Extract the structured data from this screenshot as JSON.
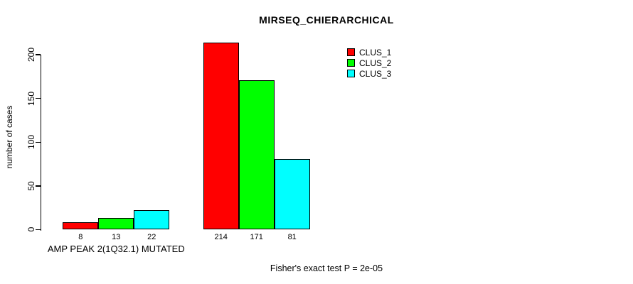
{
  "chart_data": {
    "type": "bar",
    "title": "MIRSEQ_CHIERARCHICAL",
    "xlabel": "",
    "ylabel": "number of cases",
    "ylim": [
      0,
      215
    ],
    "yticks": [
      0,
      50,
      100,
      150,
      200
    ],
    "grid": false,
    "legend_position": "top-right",
    "series": [
      {
        "name": "CLUS_1",
        "color": "#ff0000"
      },
      {
        "name": "CLUS_2",
        "color": "#00ff00"
      },
      {
        "name": "CLUS_3",
        "color": "#00ffff"
      }
    ],
    "groups": [
      {
        "label": "AMP PEAK 2(1Q32.1) MUTATED",
        "values": [
          8,
          13,
          22
        ]
      },
      {
        "label": "",
        "values": [
          214,
          171,
          81
        ]
      }
    ],
    "annotation": "Fisher's exact test P = 2e-05"
  }
}
